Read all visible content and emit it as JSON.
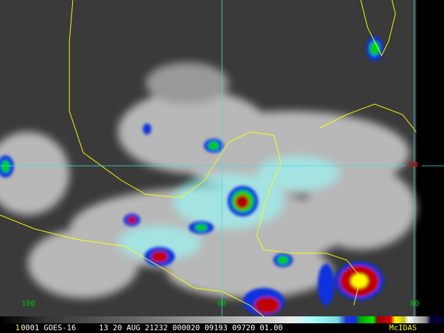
{
  "grid_labels": {
    "lon_100": "100",
    "lon_90": "90",
    "lon_80": "80",
    "lat_20": "20"
  },
  "status_bar": {
    "frame": "1",
    "text": "0001 GOES-16     13 20 AUG 21232 000020 09193 09720 01.00",
    "brand": "McIDAS"
  },
  "colors": {
    "coastline": "#ffff00",
    "grid": "#40e0e0",
    "lon_label": "#00c000",
    "lat_label": "#ff0000",
    "brand": "#ffff00"
  }
}
